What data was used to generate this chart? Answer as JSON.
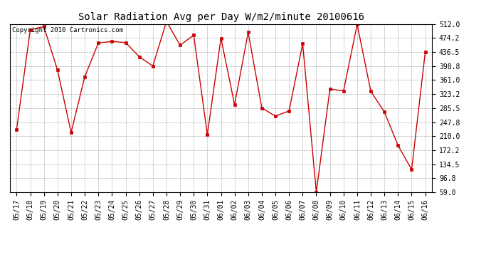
{
  "title": "Solar Radiation Avg per Day W/m2/minute 20100616",
  "copyright_text": "Copyright 2010 Cartronics.com",
  "labels": [
    "05/17",
    "05/18",
    "05/19",
    "05/20",
    "05/21",
    "05/22",
    "05/23",
    "05/24",
    "05/25",
    "05/26",
    "05/27",
    "05/28",
    "05/29",
    "05/30",
    "05/31",
    "06/01",
    "06/02",
    "06/03",
    "06/04",
    "06/05",
    "06/06",
    "06/07",
    "06/08",
    "06/09",
    "06/10",
    "06/11",
    "06/12",
    "06/13",
    "06/14",
    "06/15",
    "06/16"
  ],
  "values": [
    228,
    497,
    505,
    388,
    220,
    370,
    461,
    465,
    462,
    424,
    399,
    519,
    455,
    482,
    214,
    474,
    295,
    490,
    286,
    264,
    278,
    459,
    59,
    337,
    332,
    511,
    331,
    275,
    185,
    120,
    437
  ],
  "line_color": "#cc0000",
  "marker_color": "#cc0000",
  "bg_color": "#ffffff",
  "grid_color": "#999999",
  "yticks": [
    59.0,
    96.8,
    134.5,
    172.2,
    210.0,
    247.8,
    285.5,
    323.2,
    361.0,
    398.8,
    436.5,
    474.2,
    512.0
  ],
  "ylim": [
    59.0,
    512.0
  ],
  "title_fontsize": 10,
  "axis_fontsize": 7,
  "copyright_fontsize": 6.5
}
